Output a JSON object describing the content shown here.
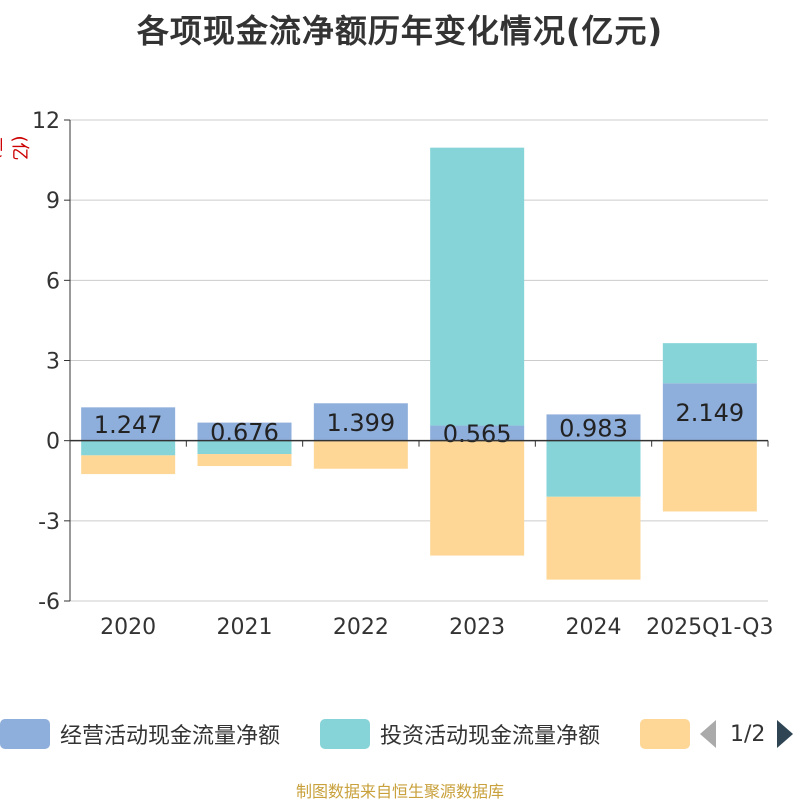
{
  "chart_data": {
    "type": "bar",
    "stacked": true,
    "title": "各项现金流净额历年变化情况(亿元)",
    "ylabel": "(亿元)",
    "categories": [
      "2020",
      "2021",
      "2022",
      "2023",
      "2024",
      "2025Q1-Q3"
    ],
    "ylim": [
      -6,
      12
    ],
    "yticks": [
      12,
      9,
      6,
      3,
      0,
      -3,
      -6
    ],
    "grid": true,
    "series": [
      {
        "name": "经营活动现金流量净额",
        "color": "#8eaedb",
        "values": [
          1.247,
          0.676,
          1.399,
          0.565,
          0.983,
          2.149
        ],
        "labels": [
          "1.247",
          "0.676",
          "1.399",
          "0.565",
          "0.983",
          "2.149"
        ]
      },
      {
        "name": "投资活动现金流量净额",
        "color": "#86d4d8",
        "values": [
          -0.55,
          -0.5,
          0.0,
          10.4,
          -2.1,
          1.5
        ]
      },
      {
        "name": "",
        "color": "#fed797",
        "values": [
          -0.7,
          -0.45,
          -1.05,
          -4.3,
          -3.1,
          -2.65
        ]
      }
    ]
  },
  "legend": {
    "items": [
      {
        "label": "经营活动现金流量净额",
        "color": "#8eaedb"
      },
      {
        "label": "投资活动现金流量净额",
        "color": "#86d4d8"
      },
      {
        "label": "",
        "color": "#fed797"
      }
    ],
    "page": "1/2"
  },
  "footer": {
    "source": "制图数据来自恒生聚源数据库"
  }
}
